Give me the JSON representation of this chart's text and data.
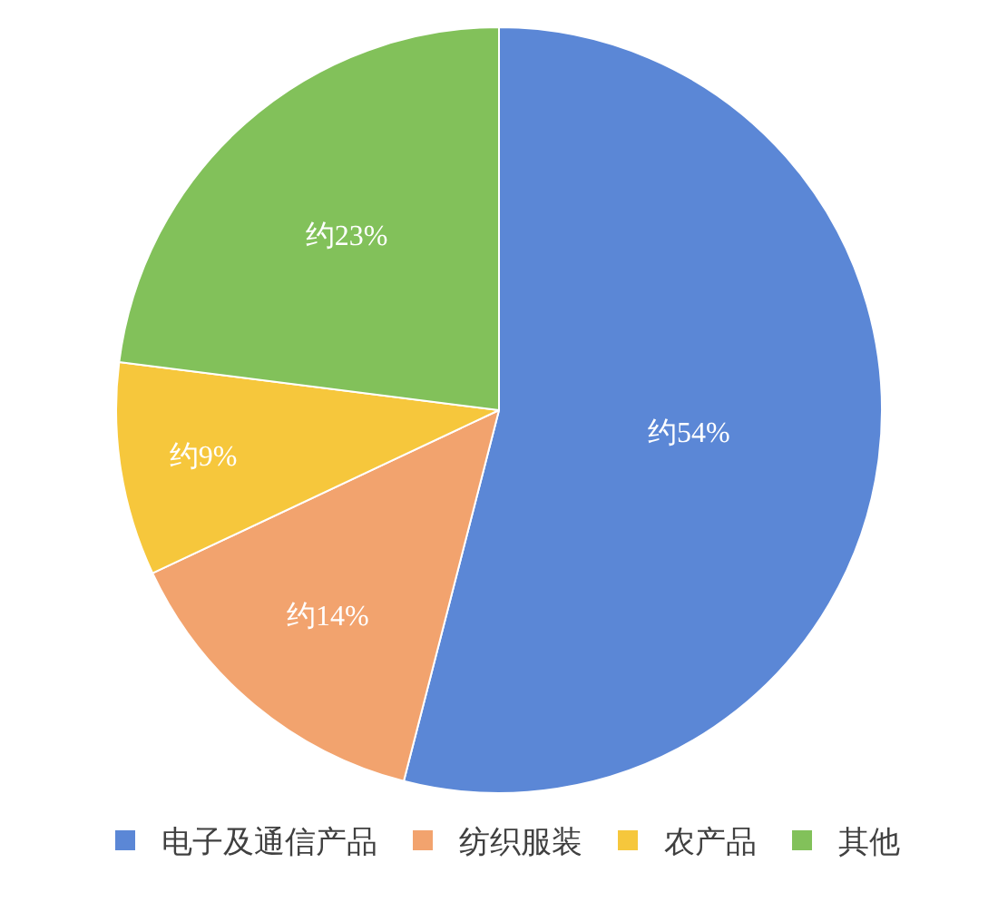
{
  "chart_data": {
    "type": "pie",
    "categories": [
      "电子及通信产品",
      "纺织服装",
      "农产品",
      "其他"
    ],
    "values": [
      54,
      14,
      9,
      23
    ],
    "colors": [
      "#5b87d6",
      "#f2a36e",
      "#f6c73c",
      "#82c15a"
    ],
    "value_labels": [
      "约54%",
      "约14%",
      "约9%",
      "约23%"
    ],
    "legend": "bottom"
  }
}
